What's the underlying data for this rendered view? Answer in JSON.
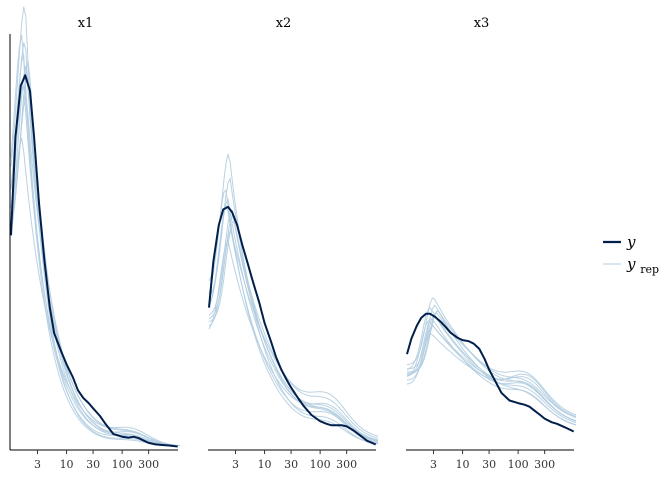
{
  "chart_data": {
    "type": "line",
    "subtype": "posterior predictive density overlay (log x axis)",
    "x_scale": "log",
    "x_ticks": [
      3,
      10,
      30,
      100,
      300
    ],
    "x_tick_labels": [
      "3",
      "10",
      "30",
      "100",
      "300"
    ],
    "xlim": [
      1,
      1100
    ],
    "grid": false,
    "legend": {
      "placement": "right",
      "entries": [
        {
          "key": "y",
          "label": "y",
          "color": "#011f4b",
          "style": "thick"
        },
        {
          "key": "yrep",
          "label": "y",
          "subscript": "rep",
          "color": "#b3cde0",
          "style": "thin"
        }
      ]
    },
    "colors": {
      "y": "#011f4b",
      "yrep": "#b3cde0",
      "axis": "#000000"
    },
    "panels": [
      {
        "title": "x1",
        "ylim": [
          0,
          0.8
        ],
        "y": {
          "x": [
            1,
            1.2,
            1.5,
            1.8,
            2.2,
            2.6,
            3.2,
            4,
            5,
            6,
            8,
            10,
            13,
            16,
            20,
            25,
            30,
            40,
            50,
            70,
            100,
            130,
            160,
            200,
            250,
            300,
            400,
            500,
            700,
            1000
          ],
          "values": [
            0.41,
            0.6,
            0.7,
            0.72,
            0.69,
            0.6,
            0.47,
            0.36,
            0.27,
            0.22,
            0.185,
            0.16,
            0.135,
            0.11,
            0.095,
            0.085,
            0.075,
            0.06,
            0.045,
            0.025,
            0.02,
            0.018,
            0.02,
            0.017,
            0.012,
            0.008,
            0.005,
            0.004,
            0.003,
            0.001
          ]
        },
        "yrep": [
          {
            "peak_x": 1.8,
            "peak": 0.79,
            "decay": 1.05,
            "tail": 0.02
          },
          {
            "peak_x": 1.7,
            "peak": 0.76,
            "decay": 1.1,
            "tail": 0.03
          },
          {
            "peak_x": 1.9,
            "peak": 0.74,
            "decay": 1.0,
            "tail": 0.025
          },
          {
            "peak_x": 1.6,
            "peak": 0.8,
            "decay": 1.15,
            "tail": 0.015
          },
          {
            "peak_x": 2.0,
            "peak": 0.72,
            "decay": 0.95,
            "tail": 0.03
          },
          {
            "peak_x": 1.8,
            "peak": 0.86,
            "decay": 1.2,
            "tail": 0.02
          },
          {
            "peak_x": 1.7,
            "peak": 0.7,
            "decay": 1.0,
            "tail": 0.035
          },
          {
            "peak_x": 2.1,
            "peak": 0.75,
            "decay": 1.05,
            "tail": 0.02
          },
          {
            "peak_x": 1.9,
            "peak": 0.68,
            "decay": 0.9,
            "tail": 0.03
          },
          {
            "peak_x": 1.6,
            "peak": 0.6,
            "decay": 0.85,
            "tail": 0.04
          }
        ]
      },
      {
        "title": "x2",
        "ylim": [
          0,
          0.8
        ],
        "y": {
          "x": [
            1,
            1.2,
            1.5,
            1.8,
            2.2,
            2.6,
            3.2,
            4,
            5,
            6,
            8,
            10,
            13,
            16,
            20,
            25,
            30,
            40,
            50,
            70,
            100,
            130,
            160,
            200,
            250,
            300,
            400,
            500,
            700,
            1000
          ],
          "values": [
            0.27,
            0.36,
            0.43,
            0.46,
            0.465,
            0.455,
            0.43,
            0.39,
            0.355,
            0.325,
            0.28,
            0.24,
            0.205,
            0.175,
            0.15,
            0.13,
            0.115,
            0.095,
            0.08,
            0.062,
            0.05,
            0.045,
            0.042,
            0.042,
            0.042,
            0.04,
            0.032,
            0.024,
            0.012,
            0.005
          ]
        },
        "yrep": [
          {
            "peak_x": 2.4,
            "peak": 0.52,
            "decay": 0.65,
            "tail": 0.06
          },
          {
            "peak_x": 2.2,
            "peak": 0.48,
            "decay": 0.6,
            "tail": 0.05
          },
          {
            "peak_x": 2.6,
            "peak": 0.46,
            "decay": 0.55,
            "tail": 0.07
          },
          {
            "peak_x": 2.0,
            "peak": 0.5,
            "decay": 0.7,
            "tail": 0.04
          },
          {
            "peak_x": 2.8,
            "peak": 0.44,
            "decay": 0.6,
            "tail": 0.06
          },
          {
            "peak_x": 2.3,
            "peak": 0.57,
            "decay": 0.75,
            "tail": 0.05
          },
          {
            "peak_x": 2.5,
            "peak": 0.42,
            "decay": 0.5,
            "tail": 0.08
          },
          {
            "peak_x": 2.1,
            "peak": 0.47,
            "decay": 0.65,
            "tail": 0.06
          },
          {
            "peak_x": 2.7,
            "peak": 0.45,
            "decay": 0.6,
            "tail": 0.05
          },
          {
            "peak_x": 2.2,
            "peak": 0.4,
            "decay": 0.55,
            "tail": 0.07
          }
        ]
      },
      {
        "title": "x3",
        "ylim": [
          0,
          0.8
        ],
        "y": {
          "x": [
            1,
            1.2,
            1.5,
            1.8,
            2.2,
            2.6,
            3.2,
            4,
            5,
            6,
            8,
            10,
            13,
            16,
            20,
            25,
            30,
            40,
            50,
            70,
            100,
            130,
            160,
            200,
            250,
            300,
            400,
            500,
            700,
            1000
          ],
          "values": [
            0.18,
            0.21,
            0.235,
            0.25,
            0.258,
            0.258,
            0.252,
            0.243,
            0.232,
            0.222,
            0.212,
            0.207,
            0.205,
            0.2,
            0.19,
            0.17,
            0.15,
            0.125,
            0.105,
            0.09,
            0.085,
            0.082,
            0.078,
            0.07,
            0.062,
            0.055,
            0.048,
            0.045,
            0.038,
            0.03
          ]
        },
        "yrep": [
          {
            "peak_x": 3.0,
            "peak": 0.29,
            "decay": 0.3,
            "tail": 0.05
          },
          {
            "peak_x": 2.6,
            "peak": 0.27,
            "decay": 0.28,
            "tail": 0.06
          },
          {
            "peak_x": 3.4,
            "peak": 0.26,
            "decay": 0.25,
            "tail": 0.07
          },
          {
            "peak_x": 2.8,
            "peak": 0.25,
            "decay": 0.3,
            "tail": 0.05
          },
          {
            "peak_x": 3.2,
            "peak": 0.275,
            "decay": 0.32,
            "tail": 0.04
          },
          {
            "peak_x": 2.5,
            "peak": 0.245,
            "decay": 0.26,
            "tail": 0.06
          },
          {
            "peak_x": 3.6,
            "peak": 0.265,
            "decay": 0.27,
            "tail": 0.05
          },
          {
            "peak_x": 2.9,
            "peak": 0.235,
            "decay": 0.24,
            "tail": 0.07
          },
          {
            "peak_x": 3.1,
            "peak": 0.255,
            "decay": 0.29,
            "tail": 0.05
          },
          {
            "peak_x": 2.7,
            "peak": 0.22,
            "decay": 0.22,
            "tail": 0.08
          }
        ]
      }
    ]
  }
}
